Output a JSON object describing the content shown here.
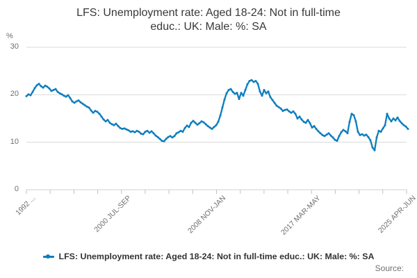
{
  "header": {
    "title_line1": "LFS: Unemployment rate: Aged 18-24: Not in full-time",
    "title_line2": "educ.: UK: Male: %: SA"
  },
  "legend": {
    "label": "LFS: Unemployment rate: Aged 18-24: Not in full-time educ.: UK: Male: %: SA"
  },
  "footer": {
    "source_label": "Source:"
  },
  "colors": {
    "line": "#0d7dbe",
    "gridline": "#d9d9d9",
    "axis_line": "#d1d1d1",
    "tick": "#b5c2da",
    "title_text": "#383838",
    "axis_text": "#6e6e6e"
  },
  "chart_data": {
    "type": "line",
    "title": "LFS: Unemployment rate: Aged 18-24: Not in full-time educ.: UK: Male: %: SA",
    "xlabel": "",
    "ylabel": "%",
    "ylim": [
      0,
      30
    ],
    "yticks": [
      0,
      10,
      20,
      30
    ],
    "ytick_labels": [
      "30",
      "20",
      "10",
      "0"
    ],
    "gridline_values": [
      10,
      20,
      30
    ],
    "grid": "horizontal",
    "legend_position": "bottom",
    "xtick_total": 17,
    "xtick_labels": [
      "1992 ...",
      "2000 JUL-SEP",
      "2008 NOV-JAN",
      "2017 MAR-MAY",
      "2025 APR-JUN"
    ],
    "xtick_label_positions": [
      0,
      4,
      8,
      12,
      16
    ],
    "series": [
      {
        "name": "LFS: Unemployment rate: Aged 18-24: Not in full-time educ.: UK: Male: %: SA",
        "color": "#0d7dbe",
        "values": [
          19.7,
          20.1,
          19.9,
          20.6,
          21.4,
          22.0,
          22.3,
          21.8,
          21.5,
          21.9,
          21.7,
          21.3,
          20.8,
          21.0,
          21.2,
          20.6,
          20.3,
          20.1,
          19.8,
          19.6,
          19.9,
          19.3,
          18.6,
          18.3,
          18.6,
          18.8,
          18.4,
          18.1,
          17.8,
          17.5,
          17.3,
          16.7,
          16.2,
          16.6,
          16.4,
          16.0,
          15.4,
          14.8,
          14.4,
          14.7,
          14.1,
          13.8,
          13.6,
          13.9,
          13.4,
          13.0,
          12.8,
          12.9,
          12.7,
          12.5,
          12.2,
          12.3,
          12.1,
          12.4,
          12.2,
          11.8,
          11.7,
          12.2,
          12.4,
          12.0,
          12.3,
          11.9,
          11.4,
          11.1,
          10.7,
          10.3,
          10.2,
          10.7,
          11.1,
          11.3,
          11.0,
          11.3,
          11.9,
          12.1,
          12.4,
          12.2,
          13.0,
          13.5,
          13.2,
          14.1,
          14.5,
          14.1,
          13.7,
          14.0,
          14.4,
          14.2,
          13.8,
          13.4,
          13.1,
          12.8,
          13.2,
          13.6,
          14.3,
          15.6,
          17.3,
          19.0,
          20.3,
          21.0,
          21.2,
          20.6,
          20.2,
          20.4,
          19.1,
          20.4,
          19.8,
          21.0,
          22.2,
          22.9,
          23.1,
          22.7,
          22.9,
          22.3,
          20.7,
          19.8,
          21.0,
          20.3,
          20.7,
          19.5,
          18.9,
          18.3,
          17.7,
          17.4,
          17.1,
          16.6,
          16.8,
          16.9,
          16.5,
          16.2,
          16.5,
          16.0,
          15.0,
          15.4,
          14.8,
          14.3,
          14.1,
          14.7,
          14.0,
          13.1,
          13.4,
          12.8,
          12.3,
          11.9,
          11.5,
          11.3,
          11.6,
          11.9,
          11.4,
          11.0,
          10.5,
          10.3,
          11.3,
          12.1,
          12.6,
          12.3,
          11.9,
          14.3,
          16.0,
          15.7,
          14.4,
          12.2,
          11.5,
          11.7,
          11.4,
          11.6,
          11.1,
          10.4,
          8.9,
          8.3,
          11.0,
          12.4,
          12.2,
          12.9,
          13.6,
          16.0,
          15.0,
          14.4,
          15.0,
          14.6,
          15.2,
          14.5,
          14.0,
          13.6,
          13.3,
          12.8
        ]
      }
    ]
  }
}
